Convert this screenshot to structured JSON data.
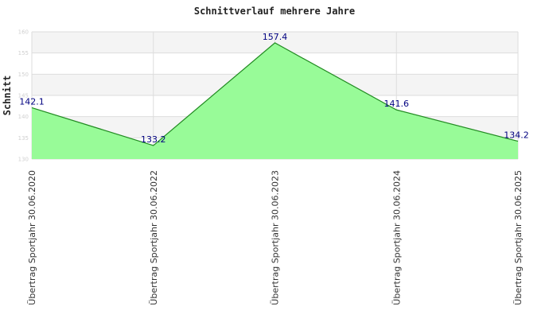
{
  "chart_data": {
    "type": "area",
    "title": "Schnittverlauf mehrere Jahre",
    "xlabel": "",
    "ylabel": "Schnitt",
    "categories": [
      "Übertrag Sportjahr 30.06.2020",
      "Übertrag Sportjahr 30.06.2022",
      "Übertrag Sportjahr 30.06.2023",
      "Übertrag Sportjahr 30.06.2024",
      "Übertrag Sportjahr 30.06.2025"
    ],
    "values": [
      142.1,
      133.2,
      157.4,
      141.6,
      134.2
    ],
    "data_labels": [
      "142.1",
      "133.2",
      "157.4",
      "141.6",
      "134.2"
    ],
    "ylim": [
      130,
      160
    ],
    "yticks": [
      "130",
      "135",
      "140",
      "145",
      "150",
      "155",
      "160"
    ],
    "grid": true,
    "legend": "none",
    "colors": {
      "fill": "#98fb98",
      "line": "#228b22",
      "label": "#000080",
      "band": "#f4f4f4",
      "gridline": "#dddddd"
    }
  }
}
